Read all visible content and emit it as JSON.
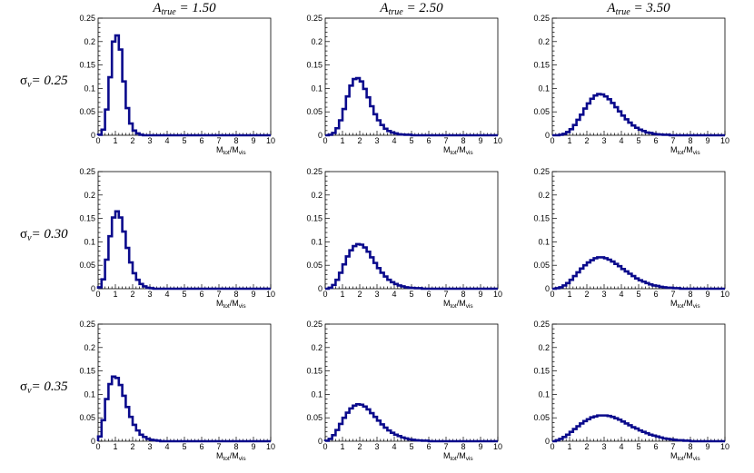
{
  "colors": {
    "line": "#0a0a8c",
    "axis": "#000000",
    "background": "#ffffff"
  },
  "column_titles": [
    {
      "base": "A",
      "sub": "true",
      "rest": " = 1.50"
    },
    {
      "base": "A",
      "sub": "true",
      "rest": " = 2.50"
    },
    {
      "base": "A",
      "sub": "true",
      "rest": " = 3.50"
    }
  ],
  "row_titles": [
    {
      "base": "σ",
      "sub": "ν",
      "rest": "= 0.25"
    },
    {
      "base": "σ",
      "sub": "ν",
      "rest": "= 0.30"
    },
    {
      "base": "σ",
      "sub": "ν",
      "rest": "= 0.35"
    }
  ],
  "axis": {
    "xlabel_main": "M",
    "xlabel_sub1": "tot",
    "xlabel_sep": "/M",
    "xlabel_sub2": "vis",
    "xlim": [
      0,
      10
    ],
    "ylim": [
      0,
      0.25
    ],
    "xticks": [
      "0",
      "1",
      "2",
      "3",
      "4",
      "5",
      "6",
      "7",
      "8",
      "9",
      "10"
    ],
    "yticks": [
      "0",
      "0.05",
      "0.1",
      "0.15",
      "0.2",
      "0.25"
    ]
  },
  "chart_data": [
    {
      "type": "histogram",
      "row": 0,
      "col": 0,
      "bin_width": 0.2,
      "x_start": 0,
      "values": [
        0.001,
        0.012,
        0.055,
        0.124,
        0.2,
        0.213,
        0.183,
        0.115,
        0.058,
        0.025,
        0.01,
        0.004,
        0.001,
        0,
        0,
        0,
        0,
        0,
        0,
        0,
        0,
        0,
        0,
        0,
        0,
        0,
        0,
        0,
        0,
        0,
        0,
        0,
        0,
        0,
        0,
        0,
        0,
        0,
        0,
        0,
        0,
        0,
        0,
        0,
        0,
        0,
        0,
        0,
        0,
        0
      ]
    },
    {
      "type": "histogram",
      "row": 0,
      "col": 1,
      "bin_width": 0.2,
      "x_start": 0,
      "values": [
        0,
        0.001,
        0.005,
        0.015,
        0.032,
        0.056,
        0.083,
        0.106,
        0.12,
        0.122,
        0.115,
        0.099,
        0.081,
        0.062,
        0.045,
        0.032,
        0.022,
        0.014,
        0.009,
        0.006,
        0.004,
        0.002,
        0.0015,
        0.001,
        0.001,
        0,
        0,
        0,
        0,
        0,
        0,
        0,
        0,
        0,
        0,
        0,
        0,
        0,
        0,
        0,
        0,
        0,
        0,
        0,
        0,
        0,
        0,
        0,
        0,
        0
      ]
    },
    {
      "type": "histogram",
      "row": 0,
      "col": 2,
      "bin_width": 0.2,
      "x_start": 0,
      "values": [
        0,
        0,
        0.001,
        0.003,
        0.007,
        0.013,
        0.022,
        0.033,
        0.044,
        0.057,
        0.068,
        0.078,
        0.085,
        0.088,
        0.087,
        0.083,
        0.077,
        0.069,
        0.06,
        0.051,
        0.042,
        0.034,
        0.027,
        0.021,
        0.016,
        0.012,
        0.009,
        0.006,
        0.005,
        0.003,
        0.002,
        0.0015,
        0.001,
        0.001,
        0,
        0,
        0,
        0,
        0,
        0,
        0,
        0,
        0,
        0,
        0,
        0,
        0,
        0,
        0,
        0
      ]
    },
    {
      "type": "histogram",
      "row": 1,
      "col": 0,
      "bin_width": 0.2,
      "x_start": 0,
      "values": [
        0.003,
        0.02,
        0.062,
        0.112,
        0.152,
        0.165,
        0.152,
        0.122,
        0.087,
        0.056,
        0.033,
        0.019,
        0.01,
        0.005,
        0.002,
        0.001,
        0,
        0,
        0,
        0,
        0,
        0,
        0,
        0,
        0,
        0,
        0,
        0,
        0,
        0,
        0,
        0,
        0,
        0,
        0,
        0,
        0,
        0,
        0,
        0,
        0,
        0,
        0,
        0,
        0,
        0,
        0,
        0,
        0,
        0
      ]
    },
    {
      "type": "histogram",
      "row": 1,
      "col": 1,
      "bin_width": 0.2,
      "x_start": 0,
      "values": [
        0,
        0.002,
        0.008,
        0.019,
        0.034,
        0.052,
        0.069,
        0.082,
        0.091,
        0.095,
        0.094,
        0.088,
        0.079,
        0.067,
        0.055,
        0.044,
        0.034,
        0.026,
        0.019,
        0.014,
        0.01,
        0.007,
        0.005,
        0.003,
        0.002,
        0.0015,
        0.001,
        0.001,
        0,
        0,
        0,
        0,
        0,
        0,
        0,
        0,
        0,
        0,
        0,
        0,
        0,
        0,
        0,
        0,
        0,
        0,
        0,
        0,
        0,
        0
      ]
    },
    {
      "type": "histogram",
      "row": 1,
      "col": 2,
      "bin_width": 0.2,
      "x_start": 0,
      "values": [
        0,
        0.001,
        0.003,
        0.007,
        0.012,
        0.019,
        0.027,
        0.035,
        0.043,
        0.05,
        0.056,
        0.061,
        0.065,
        0.067,
        0.067,
        0.065,
        0.062,
        0.058,
        0.053,
        0.048,
        0.042,
        0.037,
        0.032,
        0.027,
        0.022,
        0.018,
        0.015,
        0.012,
        0.009,
        0.007,
        0.006,
        0.004,
        0.003,
        0.002,
        0.002,
        0.001,
        0.001,
        0,
        0,
        0,
        0,
        0,
        0,
        0,
        0,
        0,
        0,
        0,
        0,
        0
      ]
    },
    {
      "type": "histogram",
      "row": 2,
      "col": 0,
      "bin_width": 0.2,
      "x_start": 0,
      "values": [
        0.01,
        0.045,
        0.09,
        0.122,
        0.138,
        0.135,
        0.12,
        0.097,
        0.073,
        0.052,
        0.035,
        0.023,
        0.014,
        0.009,
        0.005,
        0.003,
        0.002,
        0.001,
        0,
        0,
        0,
        0,
        0,
        0,
        0,
        0,
        0,
        0,
        0,
        0,
        0,
        0,
        0,
        0,
        0,
        0,
        0,
        0,
        0,
        0,
        0,
        0,
        0,
        0,
        0,
        0,
        0,
        0,
        0,
        0
      ]
    },
    {
      "type": "histogram",
      "row": 2,
      "col": 1,
      "bin_width": 0.2,
      "x_start": 0,
      "values": [
        0.001,
        0.005,
        0.013,
        0.024,
        0.037,
        0.05,
        0.061,
        0.07,
        0.076,
        0.079,
        0.078,
        0.074,
        0.068,
        0.06,
        0.052,
        0.044,
        0.036,
        0.029,
        0.023,
        0.018,
        0.014,
        0.011,
        0.008,
        0.006,
        0.004,
        0.003,
        0.002,
        0.0015,
        0.001,
        0.001,
        0,
        0,
        0,
        0,
        0,
        0,
        0,
        0,
        0,
        0,
        0,
        0,
        0,
        0,
        0,
        0,
        0,
        0,
        0,
        0
      ]
    },
    {
      "type": "histogram",
      "row": 2,
      "col": 2,
      "bin_width": 0.2,
      "x_start": 0,
      "values": [
        0,
        0.002,
        0.005,
        0.009,
        0.014,
        0.02,
        0.026,
        0.032,
        0.038,
        0.043,
        0.047,
        0.051,
        0.053,
        0.055,
        0.055,
        0.055,
        0.054,
        0.052,
        0.049,
        0.046,
        0.042,
        0.038,
        0.034,
        0.03,
        0.027,
        0.023,
        0.02,
        0.017,
        0.014,
        0.012,
        0.01,
        0.008,
        0.006,
        0.005,
        0.004,
        0.003,
        0.002,
        0.002,
        0.001,
        0.001,
        0,
        0,
        0,
        0,
        0,
        0,
        0,
        0,
        0,
        0
      ]
    }
  ]
}
